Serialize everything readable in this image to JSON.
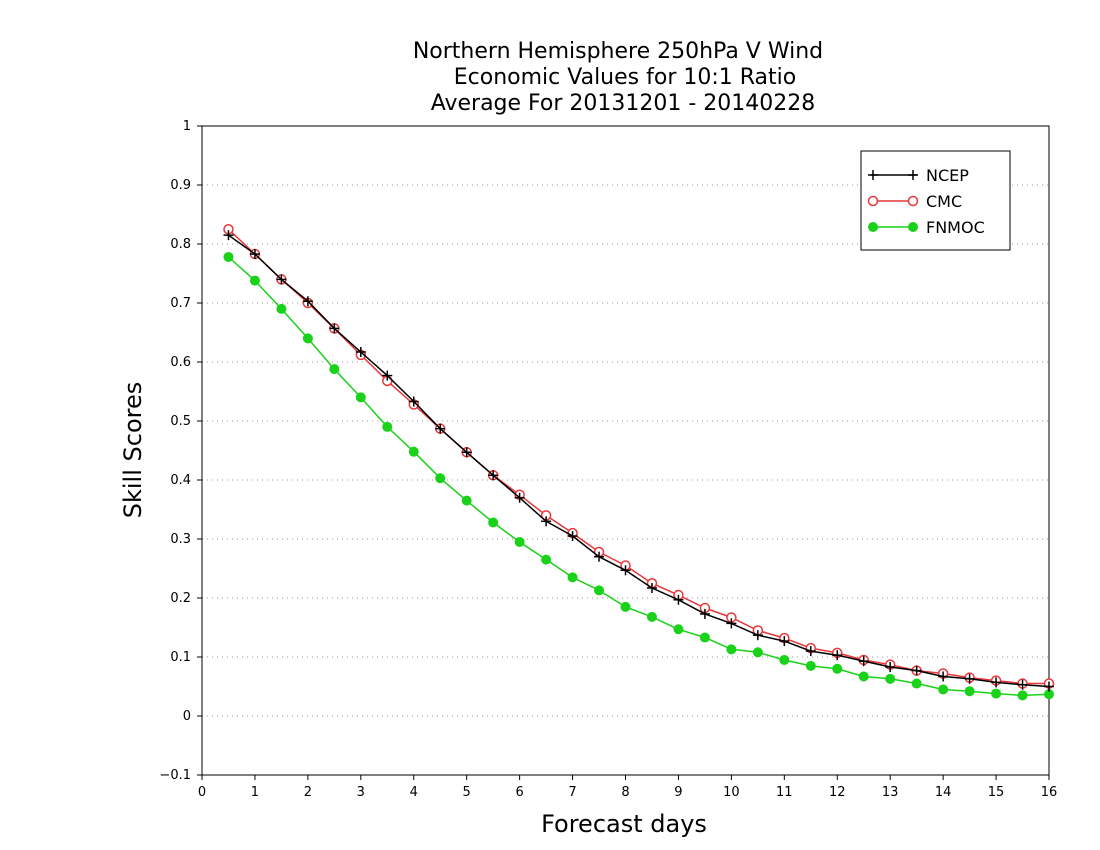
{
  "chart_data": {
    "type": "line",
    "title_lines": [
      "Northern Hemisphere 250hPa V Wind",
      "Economic Values for 10:1 Ratio",
      "Average For 20131201 - 20140228"
    ],
    "xlabel": "Forecast days",
    "ylabel": "Skill Scores",
    "xlim": [
      0,
      16
    ],
    "ylim": [
      -0.1,
      1
    ],
    "xticks": [
      0,
      1,
      2,
      3,
      4,
      5,
      6,
      7,
      8,
      9,
      10,
      11,
      12,
      13,
      14,
      15,
      16
    ],
    "yticks": [
      -0.1,
      0,
      0.1,
      0.2,
      0.3,
      0.4,
      0.5,
      0.6,
      0.7,
      0.8,
      0.9,
      1
    ],
    "ytick_labels": [
      "−0.1",
      "0",
      "0.1",
      "0.2",
      "0.3",
      "0.4",
      "0.5",
      "0.6",
      "0.7",
      "0.8",
      "0.9",
      "1"
    ],
    "grid": "horizontal-dotted",
    "legend_position": "top-right",
    "x": [
      0.5,
      1,
      1.5,
      2,
      2.5,
      3,
      3.5,
      4,
      4.5,
      5,
      5.5,
      6,
      6.5,
      7,
      7.5,
      8,
      8.5,
      9,
      9.5,
      10,
      10.5,
      11,
      11.5,
      12,
      12.5,
      13,
      13.5,
      14,
      14.5,
      15,
      15.5,
      16
    ],
    "series": [
      {
        "name": "NCEP",
        "color": "#000000",
        "marker": "plus",
        "values": [
          0.815,
          0.783,
          0.74,
          0.703,
          0.657,
          0.617,
          0.577,
          0.533,
          0.487,
          0.447,
          0.408,
          0.37,
          0.33,
          0.305,
          0.27,
          0.247,
          0.217,
          0.197,
          0.173,
          0.157,
          0.137,
          0.127,
          0.11,
          0.103,
          0.093,
          0.083,
          0.077,
          0.067,
          0.063,
          0.057,
          0.053,
          0.05
        ]
      },
      {
        "name": "CMC",
        "color": "#e8373a",
        "marker": "open-circle",
        "values": [
          0.825,
          0.783,
          0.74,
          0.7,
          0.657,
          0.612,
          0.568,
          0.528,
          0.487,
          0.447,
          0.408,
          0.375,
          0.34,
          0.31,
          0.278,
          0.255,
          0.225,
          0.205,
          0.183,
          0.167,
          0.145,
          0.132,
          0.115,
          0.107,
          0.095,
          0.087,
          0.077,
          0.072,
          0.065,
          0.06,
          0.055,
          0.055
        ]
      },
      {
        "name": "FNMOC",
        "color": "#19d219",
        "marker": "filled-circle",
        "values": [
          0.778,
          0.738,
          0.69,
          0.64,
          0.588,
          0.54,
          0.49,
          0.448,
          0.403,
          0.365,
          0.328,
          0.295,
          0.265,
          0.235,
          0.213,
          0.185,
          0.168,
          0.147,
          0.133,
          0.113,
          0.108,
          0.095,
          0.085,
          0.08,
          0.067,
          0.063,
          0.055,
          0.045,
          0.042,
          0.038,
          0.035,
          0.037
        ]
      }
    ]
  }
}
